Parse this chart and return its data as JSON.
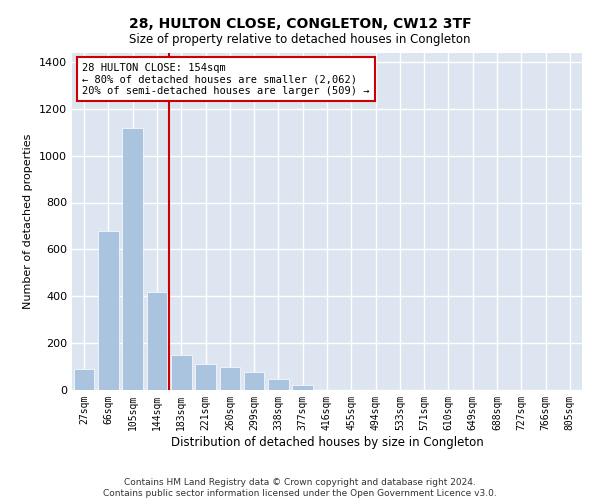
{
  "title": "28, HULTON CLOSE, CONGLETON, CW12 3TF",
  "subtitle": "Size of property relative to detached houses in Congleton",
  "xlabel": "Distribution of detached houses by size in Congleton",
  "ylabel": "Number of detached properties",
  "categories": [
    "27sqm",
    "66sqm",
    "105sqm",
    "144sqm",
    "183sqm",
    "221sqm",
    "260sqm",
    "299sqm",
    "338sqm",
    "377sqm",
    "416sqm",
    "455sqm",
    "494sqm",
    "533sqm",
    "571sqm",
    "610sqm",
    "649sqm",
    "688sqm",
    "727sqm",
    "766sqm",
    "805sqm"
  ],
  "values": [
    90,
    680,
    1120,
    420,
    150,
    110,
    100,
    75,
    45,
    20,
    0,
    0,
    0,
    0,
    0,
    0,
    0,
    0,
    0,
    0,
    0
  ],
  "bar_color": "#aac4e0",
  "background_color": "#dde6f0",
  "grid_color": "#ffffff",
  "vline_x": 3.5,
  "vline_color": "#cc0000",
  "annotation_box_text": "28 HULTON CLOSE: 154sqm\n← 80% of detached houses are smaller (2,062)\n20% of semi-detached houses are larger (509) →",
  "annotation_box_color": "#cc0000",
  "footer_line1": "Contains HM Land Registry data © Crown copyright and database right 2024.",
  "footer_line2": "Contains public sector information licensed under the Open Government Licence v3.0.",
  "ylim": [
    0,
    1440
  ],
  "yticks": [
    0,
    200,
    400,
    600,
    800,
    1000,
    1200,
    1400
  ],
  "title_fontsize": 10,
  "subtitle_fontsize": 9
}
